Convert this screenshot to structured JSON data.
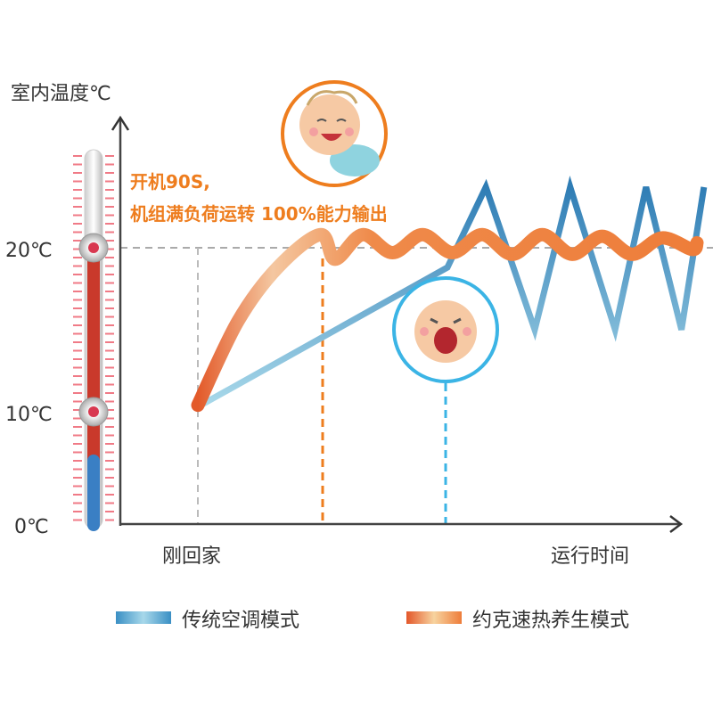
{
  "chart_data": {
    "type": "line",
    "title": "",
    "ylabel": "室内温度℃",
    "xlabel": "运行时间",
    "x_start_label": "刚回家",
    "y_ticks": [
      "20℃",
      "10℃",
      "0℃"
    ],
    "y_tick_values": [
      20,
      10,
      0
    ],
    "reference_line": 20,
    "grid": false,
    "legend_position": "bottom",
    "annotation": [
      "开机90S,",
      "机组满负荷运转 100%能力输出"
    ],
    "series": [
      {
        "name": "传统空调模式",
        "color": "#3a8fc4",
        "points": [
          [
            0,
            10.3
          ],
          [
            50,
            18.8
          ],
          [
            57.7,
            23.7
          ],
          [
            67.5,
            15
          ],
          [
            74.6,
            23.7
          ],
          [
            83.6,
            15
          ],
          [
            89.8,
            23.7
          ],
          [
            96.9,
            15
          ],
          [
            101.4,
            23.7
          ]
        ]
      },
      {
        "name": "约克速热养生模式",
        "color": "#ee7d3a",
        "points": [
          [
            0,
            10.4
          ],
          [
            8,
            15.5
          ],
          [
            16,
            18.8
          ],
          [
            24.5,
            20.8
          ],
          [
            27.5,
            19.3
          ],
          [
            33,
            20.8
          ],
          [
            39,
            19.7
          ],
          [
            45,
            20.8
          ],
          [
            51,
            19.7
          ],
          [
            57,
            20.8
          ],
          [
            63,
            19.6
          ],
          [
            69,
            20.8
          ],
          [
            75,
            19.6
          ],
          [
            81,
            20.7
          ],
          [
            87,
            19.6
          ],
          [
            93,
            20.6
          ],
          [
            99,
            19.9
          ],
          [
            100,
            20.3
          ]
        ]
      }
    ]
  },
  "colors": {
    "accent_orange": "#ee7d1e",
    "accent_blue": "#3bb4e5",
    "thermo_red": "#c9392b",
    "thermo_blue": "#3a7fc4"
  },
  "icons": [
    "happy-baby-icon",
    "crying-baby-icon",
    "thermometer-icon"
  ]
}
